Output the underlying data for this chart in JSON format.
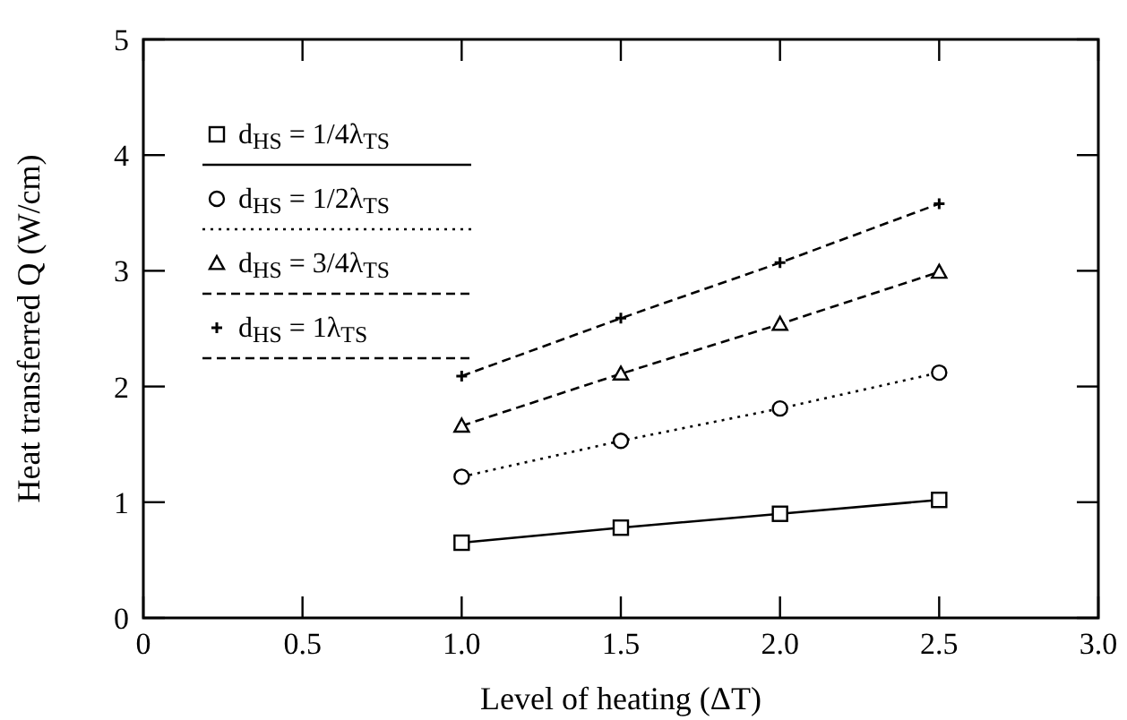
{
  "chart_data": {
    "type": "line",
    "xlabel": "Level of heating (ΔT)",
    "ylabel": "Heat transferred Q (W/cm)",
    "x": [
      1.0,
      1.5,
      2.0,
      2.5
    ],
    "xlim": [
      0,
      3.0
    ],
    "xticks": [
      0,
      0.5,
      {
        "value": 1,
        "label": "1.0"
      },
      1.5,
      {
        "value": 2,
        "label": "2.0"
      },
      2.5,
      {
        "value": 3,
        "label": "3.0"
      }
    ],
    "ylim": [
      0,
      5
    ],
    "yticks": [
      0,
      1,
      2,
      3,
      4,
      5
    ],
    "grid": false,
    "legend": "top left",
    "series": [
      {
        "name": "d$_{HS}$ = 1/4λ$_{TS}$",
        "color": "#000000",
        "values": [
          0.65,
          0.78,
          0.9,
          1.02
        ],
        "marker": "square",
        "line_style": "solid"
      },
      {
        "name": "d$_{HS}$ = 1/2λ$_{TS}$",
        "color": "#000000",
        "values": [
          1.22,
          1.53,
          1.81,
          2.12
        ],
        "marker": "circle",
        "line_style": "dotted"
      },
      {
        "name": "d$_{HS}$ = 3/4λ$_{TS}$",
        "color": "#000000",
        "values": [
          1.66,
          2.11,
          2.54,
          2.99
        ],
        "marker": "triangle",
        "line_style": "dashed"
      },
      {
        "name": "d$_{HS}$ = 1λ$_{TS}$",
        "color": "#000000",
        "values": [
          2.09,
          2.59,
          3.07,
          3.58
        ],
        "marker": "cross",
        "line_style": "dashed"
      }
    ]
  }
}
